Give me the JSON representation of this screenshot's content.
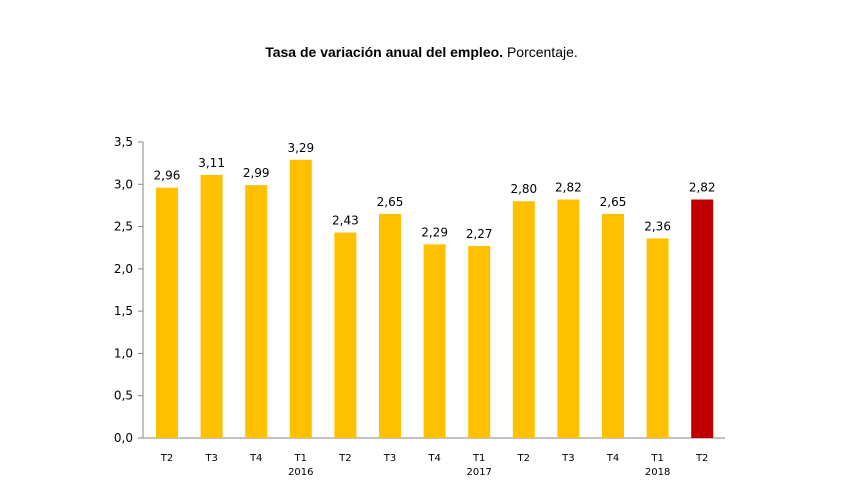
{
  "chart_data": {
    "type": "bar",
    "title_bold": "Tasa de variación anual del empleo.",
    "title_rest": " Porcentaje.",
    "categories": [
      "T2",
      "T3",
      "T4",
      "T1",
      "T2",
      "T3",
      "T4",
      "T1",
      "T2",
      "T3",
      "T4",
      "T1",
      "T2"
    ],
    "year_labels": [
      "",
      "",
      "",
      "2016",
      "",
      "",
      "",
      "2017",
      "",
      "",
      "",
      "2018",
      ""
    ],
    "values": [
      2.96,
      3.11,
      2.99,
      3.29,
      2.43,
      2.65,
      2.29,
      2.27,
      2.8,
      2.82,
      2.65,
      2.36,
      2.82
    ],
    "data_labels": [
      "2,96",
      "3,11",
      "2,99",
      "3,29",
      "2,43",
      "2,65",
      "2,29",
      "2,27",
      "2,80",
      "2,82",
      "2,65",
      "2,36",
      "2,82"
    ],
    "ylim": [
      0,
      3.5
    ],
    "yticks": [
      "0,0",
      "0,5",
      "1,0",
      "1,5",
      "2,0",
      "2,5",
      "3,0",
      "3,5"
    ],
    "grid": false,
    "colors": {
      "default": "#FFC000",
      "highlight": "#C00000"
    },
    "highlight_index": 12
  }
}
